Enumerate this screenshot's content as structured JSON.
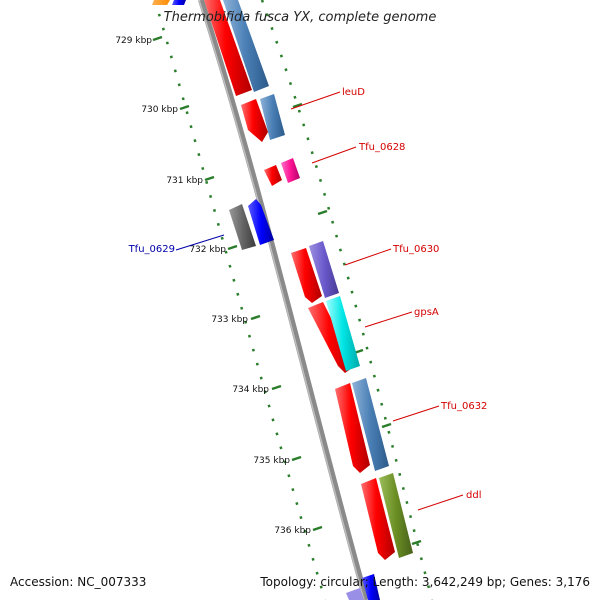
{
  "title": "Thermobifida fusca YX, complete genome",
  "accession_label": "Accession: NC_007333",
  "summary": "Topology: circular; Length: 3,642,249 bp; Genes: 3,176",
  "colors": {
    "backbone": "#777777",
    "tick": "#2a7d2a",
    "cds": "#ff1a1a",
    "label_red": "#d40000",
    "label_blue": "#0000aa"
  },
  "kbp_ticks": [
    "729 kbp",
    "730 kbp",
    "731 kbp",
    "732 kbp",
    "733 kbp",
    "734 kbp",
    "735 kbp",
    "736 kbp"
  ],
  "gene_labels": [
    {
      "name": "leuD",
      "color": "#d40000"
    },
    {
      "name": "Tfu_0628",
      "color": "#d40000"
    },
    {
      "name": "Tfu_0629",
      "color": "#0000aa"
    },
    {
      "name": "Tfu_0630",
      "color": "#d40000"
    },
    {
      "name": "gpsA",
      "color": "#d40000"
    },
    {
      "name": "Tfu_0632",
      "color": "#d40000"
    },
    {
      "name": "ddl",
      "color": "#d40000"
    }
  ]
}
